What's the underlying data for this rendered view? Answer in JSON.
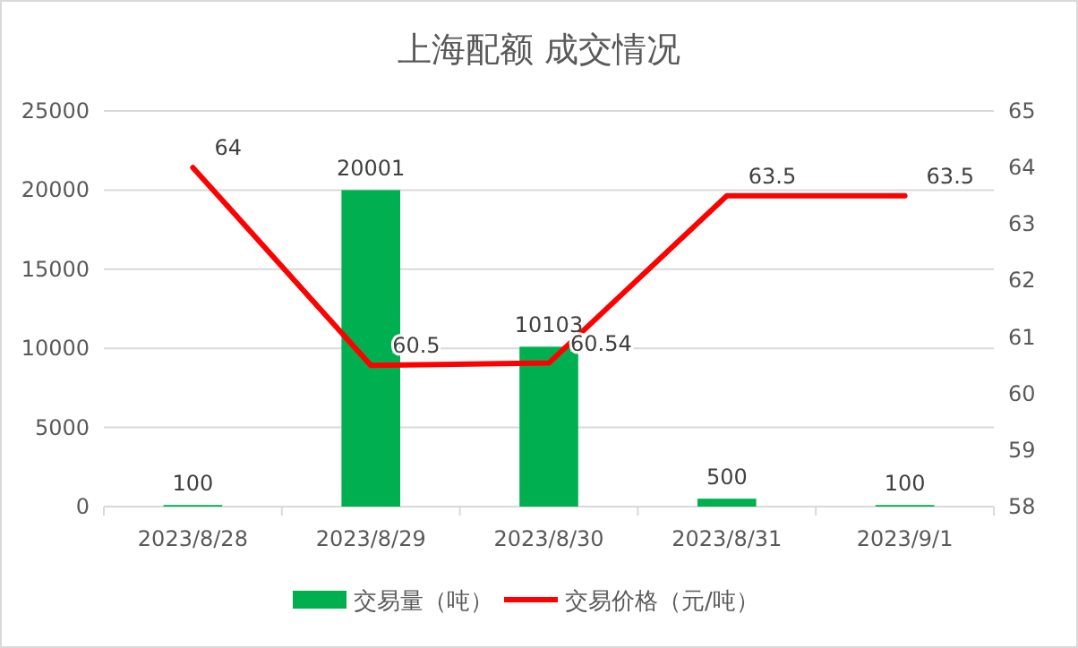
{
  "chart_data": {
    "type": "bar",
    "title": "上海配额 成交情况",
    "categories": [
      "2023/8/28",
      "2023/8/29",
      "2023/8/30",
      "2023/8/31",
      "2023/9/1"
    ],
    "series": [
      {
        "name": "交易量（吨）",
        "color": "#00b050",
        "values": [
          100,
          20001,
          10103,
          500,
          100
        ]
      },
      {
        "name": "交易价格（元/吨）",
        "type": "line",
        "axis": "y2",
        "color": "#ff0000",
        "values": [
          64,
          60.5,
          60.54,
          63.5,
          63.5
        ]
      }
    ],
    "ylim": [
      0,
      25000
    ],
    "yticks": [
      0,
      5000,
      10000,
      15000,
      20000,
      25000
    ],
    "y2lim": [
      58,
      65
    ],
    "y2ticks": [
      58,
      59,
      60,
      61,
      62,
      63,
      64,
      65
    ],
    "grid": "y",
    "legend": "bottom",
    "data_labels": true,
    "marker": "none"
  }
}
